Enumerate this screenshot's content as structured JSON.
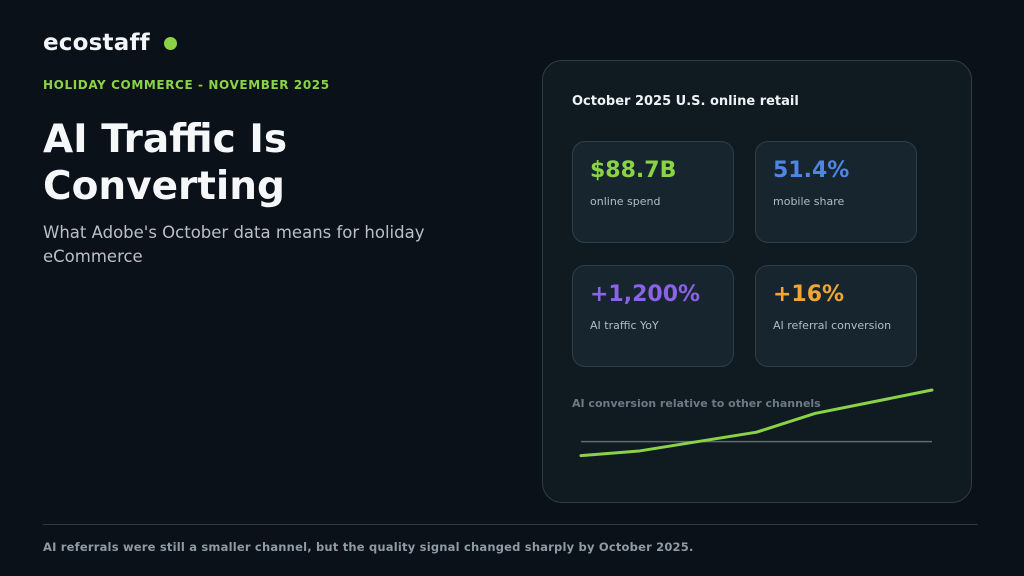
{
  "brand": {
    "name": "ecostaff",
    "dot_color": "#8bd346"
  },
  "eyebrow": {
    "text": "HOLIDAY COMMERCE - NOVEMBER 2025",
    "color": "#8bd346"
  },
  "headline": {
    "line1": "AI Traffic Is",
    "line2": "Converting"
  },
  "subhead": "What Adobe's October data means for holiday eCommerce",
  "panel": {
    "title": "October 2025 U.S. online retail",
    "stats": [
      {
        "value": "$88.7B",
        "label": "online spend",
        "color": "#8bd346"
      },
      {
        "value": "51.4%",
        "label": "mobile share",
        "color": "#4f86e6"
      },
      {
        "value": "+1,200%",
        "label": "AI traffic YoY",
        "color": "#8b63e6"
      },
      {
        "value": "+16%",
        "label": "AI referral conversion",
        "color": "#f0a534"
      }
    ],
    "chart_label": "AI conversion relative to other channels"
  },
  "chart_data": {
    "type": "line",
    "title": "AI conversion relative to other channels",
    "xlabel": "",
    "ylabel": "",
    "grid": false,
    "legend": "none",
    "x": [
      0,
      1,
      2,
      3,
      4,
      5,
      6
    ],
    "series": [
      {
        "values": [
          -0.12,
          -0.08,
          0.0,
          0.08,
          0.24,
          0.34,
          0.44
        ],
        "color": "#8bd346"
      }
    ],
    "baseline": {
      "value": 0,
      "color": "#5f6b74"
    },
    "ylim": [
      -0.2,
      0.5
    ],
    "xlim": [
      0,
      6
    ]
  },
  "footer": "AI referrals were still a smaller channel, but the quality signal changed sharply by October 2025."
}
